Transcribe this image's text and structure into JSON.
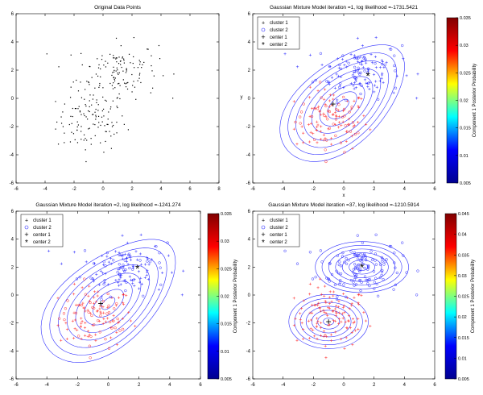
{
  "colors": {
    "cluster1": "#ff2a2a",
    "cluster2": "#2a2aff",
    "contour": "#3030ff",
    "colormap": [
      "#00008f",
      "#0000ff",
      "#00ffff",
      "#ffff00",
      "#ff0000",
      "#800000"
    ]
  },
  "chart_data": [
    {
      "id": "p0",
      "type": "scatter",
      "title": "Original Data Points",
      "xlim": [
        -6,
        8
      ],
      "ylim": [
        -6,
        6
      ],
      "xticks": [
        -6,
        -4,
        -2,
        0,
        2,
        4,
        6,
        8
      ],
      "yticks": [
        -6,
        -4,
        -2,
        0,
        2,
        4,
        6
      ],
      "points": "raw"
    },
    {
      "id": "p1",
      "type": "scatter",
      "title": "Gaussian Mixture Model iteration =1, log likelihood =-1731.5421",
      "xlabel": "x",
      "ylabel": "y",
      "xlim": [
        -6,
        6
      ],
      "ylim": [
        -6,
        6
      ],
      "xticks": [
        -6,
        -4,
        -2,
        0,
        2,
        4,
        6
      ],
      "yticks": [
        -6,
        -4,
        -2,
        0,
        2,
        4,
        6
      ],
      "legend": [
        "cluster 1",
        "cluster 2",
        "center 1",
        "center 2"
      ],
      "centers": [
        [
          -0.7,
          -0.4
        ],
        [
          1.6,
          1.6
        ]
      ],
      "colorbar": {
        "label": "Component 1 Posterior Probability",
        "min": 0.005,
        "max": 0.035,
        "ticks": [
          0.005,
          0.01,
          0.015,
          0.02,
          0.025,
          0.03,
          0.035
        ]
      }
    },
    {
      "id": "p2",
      "type": "scatter",
      "title": "Gaussian Mixture Model iteration =2, log likelihood =-1241.274",
      "xlim": [
        -6,
        6
      ],
      "ylim": [
        -6,
        6
      ],
      "xticks": [
        -6,
        -4,
        -2,
        0,
        2,
        4,
        6
      ],
      "yticks": [
        -6,
        -4,
        -2,
        0,
        2,
        4,
        6
      ],
      "legend": [
        "cluster 1",
        "cluster 2",
        "center 1",
        "center 2"
      ],
      "centers": [
        [
          -0.5,
          -0.6
        ],
        [
          1.9,
          1.9
        ]
      ],
      "colorbar": {
        "label": "Component 1 Posterior Probability",
        "min": 0.005,
        "max": 0.035,
        "ticks": [
          0.005,
          0.01,
          0.015,
          0.02,
          0.025,
          0.03,
          0.035
        ]
      }
    },
    {
      "id": "p3",
      "type": "scatter",
      "title": "Gaussian Mixture Model iteration =37, log likelihood =-1210.5914",
      "xlim": [
        -6,
        6
      ],
      "ylim": [
        -6,
        6
      ],
      "xticks": [
        -6,
        -4,
        -2,
        0,
        2,
        4,
        6
      ],
      "yticks": [
        -6,
        -4,
        -2,
        0,
        2,
        4,
        6
      ],
      "legend": [
        "cluster 1",
        "cluster 2",
        "center 1",
        "center 2"
      ],
      "centers": [
        [
          -1.0,
          -1.9
        ],
        [
          1.2,
          2.0
        ]
      ],
      "colorbar": {
        "label": "Component 1 Posterior Probability",
        "min": 0.005,
        "max": 0.045,
        "ticks": [
          0.005,
          0.01,
          0.015,
          0.02,
          0.025,
          0.03,
          0.035,
          0.04,
          0.045
        ]
      }
    }
  ]
}
